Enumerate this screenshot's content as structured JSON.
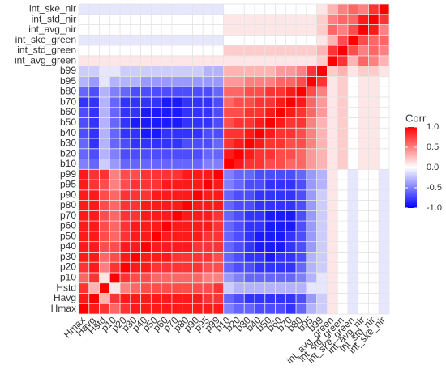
{
  "chart_data": {
    "type": "heatmap",
    "variables": [
      "Hmax",
      "Havg",
      "Hstd",
      "p10",
      "p20",
      "p30",
      "p40",
      "p50",
      "p60",
      "p70",
      "p80",
      "p90",
      "p95",
      "p99",
      "b10",
      "b20",
      "b30",
      "b40",
      "b50",
      "b60",
      "b70",
      "b80",
      "b95",
      "b99",
      "int_avg_green",
      "int_std_green",
      "int_ske_green",
      "int_avg_nir",
      "int_std_nir",
      "int_ske_nir"
    ],
    "values": [
      [
        1,
        0.9,
        0.8,
        0.6,
        0.8,
        0.9,
        0.9,
        0.9,
        0.9,
        0.9,
        0.9,
        0.9,
        0.9,
        0.9,
        -0.5,
        -0.6,
        -0.6,
        -0.7,
        -0.7,
        -0.7,
        -0.8,
        -0.6,
        -0.3,
        -0.2,
        0.1,
        0.0,
        -0.1,
        0.0,
        0.0,
        -0.1
      ],
      [
        0.9,
        1,
        0.3,
        0.8,
        0.9,
        0.9,
        0.9,
        0.9,
        0.9,
        0.9,
        0.9,
        0.9,
        0.8,
        0.8,
        -0.6,
        -0.7,
        -0.8,
        -0.8,
        -0.8,
        -0.8,
        -0.8,
        -0.7,
        -0.4,
        -0.2,
        0.1,
        0.0,
        -0.1,
        0.0,
        0.0,
        -0.1
      ],
      [
        0.8,
        0.3,
        1,
        0.1,
        0.5,
        0.6,
        0.7,
        0.7,
        0.7,
        0.7,
        0.7,
        0.7,
        0.7,
        0.8,
        -0.2,
        -0.3,
        -0.3,
        -0.3,
        -0.3,
        -0.3,
        -0.3,
        -0.3,
        -0.1,
        -0.1,
        0.1,
        0.0,
        -0.1,
        0.0,
        0.0,
        -0.1
      ],
      [
        0.6,
        0.8,
        0.1,
        1,
        0.8,
        0.7,
        0.7,
        0.6,
        0.6,
        0.6,
        0.6,
        0.6,
        0.5,
        0.5,
        -0.4,
        -0.5,
        -0.6,
        -0.6,
        -0.6,
        -0.6,
        -0.6,
        -0.5,
        -0.3,
        -0.1,
        0.1,
        0.0,
        -0.1,
        0.0,
        0.0,
        -0.1
      ],
      [
        0.8,
        0.9,
        0.5,
        0.8,
        1,
        0.9,
        0.9,
        0.8,
        0.8,
        0.8,
        0.8,
        0.8,
        0.7,
        0.7,
        -0.6,
        -0.7,
        -0.7,
        -0.8,
        -0.8,
        -0.8,
        -0.8,
        -0.6,
        -0.3,
        -0.2,
        0.1,
        0.0,
        -0.1,
        0.0,
        0.0,
        -0.1
      ],
      [
        0.9,
        0.9,
        0.6,
        0.7,
        0.9,
        1,
        0.9,
        0.9,
        0.9,
        0.8,
        0.8,
        0.8,
        0.8,
        0.7,
        -0.6,
        -0.7,
        -0.8,
        -0.8,
        -0.9,
        -0.8,
        -0.8,
        -0.7,
        -0.3,
        -0.2,
        0.1,
        0.0,
        -0.1,
        0.0,
        0.0,
        -0.1
      ],
      [
        0.9,
        0.9,
        0.7,
        0.7,
        0.9,
        0.9,
        1,
        0.9,
        0.9,
        0.9,
        0.9,
        0.8,
        0.8,
        0.8,
        -0.6,
        -0.7,
        -0.8,
        -0.9,
        -0.9,
        -0.9,
        -0.8,
        -0.7,
        -0.4,
        -0.2,
        0.1,
        0.0,
        -0.1,
        0.0,
        0.0,
        -0.1
      ],
      [
        0.9,
        0.9,
        0.7,
        0.6,
        0.8,
        0.9,
        0.9,
        1,
        0.9,
        0.9,
        0.9,
        0.9,
        0.8,
        0.8,
        -0.6,
        -0.7,
        -0.8,
        -0.9,
        -0.9,
        -0.9,
        -0.8,
        -0.7,
        -0.4,
        -0.2,
        0.1,
        0.0,
        -0.1,
        0.0,
        0.0,
        -0.1
      ],
      [
        0.9,
        0.9,
        0.7,
        0.6,
        0.8,
        0.9,
        0.9,
        0.9,
        1,
        0.9,
        0.9,
        0.9,
        0.9,
        0.8,
        -0.6,
        -0.7,
        -0.8,
        -0.8,
        -0.9,
        -0.9,
        -0.9,
        -0.7,
        -0.4,
        -0.2,
        0.1,
        0.0,
        -0.1,
        0.0,
        0.0,
        -0.1
      ],
      [
        0.9,
        0.9,
        0.7,
        0.6,
        0.8,
        0.8,
        0.9,
        0.9,
        0.9,
        1,
        0.9,
        0.9,
        0.9,
        0.8,
        -0.6,
        -0.7,
        -0.8,
        -0.8,
        -0.9,
        -0.9,
        -0.9,
        -0.7,
        -0.4,
        -0.2,
        0.1,
        0.0,
        -0.1,
        0.0,
        0.0,
        -0.1
      ],
      [
        0.9,
        0.9,
        0.7,
        0.6,
        0.8,
        0.8,
        0.9,
        0.9,
        0.9,
        0.9,
        1,
        0.9,
        0.9,
        0.9,
        -0.6,
        -0.7,
        -0.7,
        -0.8,
        -0.8,
        -0.8,
        -0.8,
        -0.7,
        -0.4,
        -0.2,
        0.1,
        0.0,
        -0.1,
        0.0,
        0.0,
        -0.1
      ],
      [
        0.9,
        0.9,
        0.7,
        0.6,
        0.8,
        0.8,
        0.8,
        0.9,
        0.9,
        0.9,
        0.9,
        1,
        0.9,
        0.9,
        -0.6,
        -0.7,
        -0.7,
        -0.8,
        -0.8,
        -0.8,
        -0.8,
        -0.7,
        -0.4,
        -0.2,
        0.1,
        0.0,
        -0.1,
        0.0,
        0.0,
        -0.1
      ],
      [
        0.9,
        0.8,
        0.7,
        0.5,
        0.7,
        0.8,
        0.8,
        0.8,
        0.9,
        0.9,
        0.9,
        0.9,
        1,
        0.9,
        -0.5,
        -0.6,
        -0.7,
        -0.7,
        -0.8,
        -0.8,
        -0.8,
        -0.7,
        -0.4,
        -0.3,
        0.1,
        0.0,
        -0.1,
        0.0,
        0.0,
        -0.1
      ],
      [
        0.9,
        0.8,
        0.8,
        0.5,
        0.7,
        0.7,
        0.8,
        0.8,
        0.8,
        0.8,
        0.9,
        0.9,
        0.9,
        1,
        -0.5,
        -0.6,
        -0.6,
        -0.7,
        -0.7,
        -0.7,
        -0.7,
        -0.6,
        -0.4,
        -0.3,
        0.1,
        0.0,
        -0.1,
        0.0,
        0.0,
        -0.1
      ],
      [
        -0.5,
        -0.6,
        -0.2,
        -0.4,
        -0.6,
        -0.6,
        -0.6,
        -0.6,
        -0.6,
        -0.6,
        -0.6,
        -0.6,
        -0.5,
        -0.5,
        1,
        0.9,
        0.8,
        0.8,
        0.7,
        0.7,
        0.6,
        0.6,
        0.4,
        0.3,
        0.1,
        0.2,
        0.0,
        0.1,
        0.1,
        0.0
      ],
      [
        -0.6,
        -0.7,
        -0.3,
        -0.5,
        -0.7,
        -0.7,
        -0.7,
        -0.7,
        -0.7,
        -0.7,
        -0.7,
        -0.7,
        -0.6,
        -0.6,
        0.9,
        1,
        0.9,
        0.8,
        0.8,
        0.7,
        0.7,
        0.6,
        0.4,
        0.3,
        0.1,
        0.2,
        0.0,
        0.1,
        0.1,
        0.0
      ],
      [
        -0.6,
        -0.8,
        -0.3,
        -0.6,
        -0.7,
        -0.8,
        -0.8,
        -0.8,
        -0.8,
        -0.8,
        -0.7,
        -0.7,
        -0.7,
        -0.6,
        0.8,
        0.9,
        1,
        0.9,
        0.8,
        0.8,
        0.7,
        0.7,
        0.5,
        0.3,
        0.1,
        0.2,
        0.0,
        0.1,
        0.1,
        0.0
      ],
      [
        -0.7,
        -0.8,
        -0.3,
        -0.6,
        -0.8,
        -0.8,
        -0.9,
        -0.9,
        -0.8,
        -0.8,
        -0.8,
        -0.8,
        -0.7,
        -0.7,
        0.8,
        0.8,
        0.9,
        1,
        0.9,
        0.8,
        0.8,
        0.7,
        0.5,
        0.3,
        0.1,
        0.2,
        0.0,
        0.1,
        0.1,
        0.0
      ],
      [
        -0.7,
        -0.8,
        -0.3,
        -0.6,
        -0.8,
        -0.9,
        -0.9,
        -0.9,
        -0.9,
        -0.9,
        -0.8,
        -0.8,
        -0.8,
        -0.7,
        0.7,
        0.8,
        0.8,
        0.9,
        1,
        0.9,
        0.8,
        0.8,
        0.5,
        0.3,
        0.1,
        0.2,
        0.0,
        0.1,
        0.1,
        0.0
      ],
      [
        -0.7,
        -0.8,
        -0.3,
        -0.6,
        -0.8,
        -0.8,
        -0.9,
        -0.9,
        -0.9,
        -0.9,
        -0.8,
        -0.8,
        -0.8,
        -0.7,
        0.7,
        0.7,
        0.8,
        0.8,
        0.9,
        1,
        0.9,
        0.8,
        0.6,
        0.4,
        0.1,
        0.2,
        0.0,
        0.1,
        0.1,
        0.0
      ],
      [
        -0.8,
        -0.8,
        -0.3,
        -0.6,
        -0.8,
        -0.8,
        -0.8,
        -0.8,
        -0.9,
        -0.9,
        -0.8,
        -0.8,
        -0.8,
        -0.7,
        0.6,
        0.7,
        0.7,
        0.8,
        0.8,
        0.9,
        1,
        0.9,
        0.6,
        0.4,
        0.1,
        0.2,
        0.0,
        0.1,
        0.1,
        0.0
      ],
      [
        -0.6,
        -0.7,
        -0.3,
        -0.5,
        -0.6,
        -0.7,
        -0.7,
        -0.7,
        -0.7,
        -0.7,
        -0.7,
        -0.7,
        -0.7,
        -0.6,
        0.6,
        0.6,
        0.7,
        0.7,
        0.8,
        0.8,
        0.9,
        1,
        0.7,
        0.5,
        0.1,
        0.2,
        0.0,
        0.1,
        0.1,
        0.0
      ],
      [
        -0.3,
        -0.4,
        -0.1,
        -0.3,
        -0.3,
        -0.3,
        -0.4,
        -0.4,
        -0.4,
        -0.4,
        -0.4,
        -0.4,
        -0.4,
        -0.4,
        0.4,
        0.4,
        0.5,
        0.5,
        0.5,
        0.6,
        0.6,
        0.7,
        1,
        0.8,
        0.1,
        0.2,
        0.0,
        0.1,
        0.1,
        0.0
      ],
      [
        -0.2,
        -0.2,
        -0.1,
        -0.1,
        -0.2,
        -0.2,
        -0.2,
        -0.2,
        -0.2,
        -0.2,
        -0.2,
        -0.2,
        -0.3,
        -0.3,
        0.3,
        0.3,
        0.3,
        0.3,
        0.3,
        0.4,
        0.4,
        0.5,
        0.8,
        1,
        0.2,
        0.3,
        0.1,
        0.2,
        0.2,
        0.1
      ],
      [
        0.1,
        0.1,
        0.1,
        0.1,
        0.1,
        0.1,
        0.1,
        0.1,
        0.1,
        0.1,
        0.1,
        0.1,
        0.1,
        0.1,
        0.1,
        0.1,
        0.1,
        0.1,
        0.1,
        0.1,
        0.1,
        0.1,
        0.1,
        0.2,
        1,
        0.8,
        0.3,
        0.6,
        0.5,
        0.3
      ],
      [
        0.0,
        0.0,
        0.0,
        0.0,
        0.0,
        0.0,
        0.0,
        0.0,
        0.0,
        0.0,
        0.0,
        0.0,
        0.0,
        0.0,
        0.2,
        0.2,
        0.2,
        0.2,
        0.2,
        0.2,
        0.2,
        0.2,
        0.2,
        0.3,
        0.8,
        1,
        0.7,
        0.5,
        0.6,
        0.5
      ],
      [
        -0.1,
        -0.1,
        -0.1,
        -0.1,
        -0.1,
        -0.1,
        -0.1,
        -0.1,
        -0.1,
        -0.1,
        -0.1,
        -0.1,
        -0.1,
        -0.1,
        0.0,
        0.0,
        0.0,
        0.0,
        0.0,
        0.0,
        0.0,
        0.0,
        0.0,
        0.1,
        0.3,
        0.7,
        1,
        0.7,
        0.6,
        0.6
      ],
      [
        0.0,
        0.0,
        0.0,
        0.0,
        0.0,
        0.0,
        0.0,
        0.0,
        0.0,
        0.0,
        0.0,
        0.0,
        0.0,
        0.0,
        0.1,
        0.1,
        0.1,
        0.1,
        0.1,
        0.1,
        0.1,
        0.1,
        0.1,
        0.2,
        0.6,
        0.5,
        0.7,
        1,
        0.9,
        0.5
      ],
      [
        0.0,
        0.0,
        0.0,
        0.0,
        0.0,
        0.0,
        0.0,
        0.0,
        0.0,
        0.0,
        0.0,
        0.0,
        0.0,
        0.0,
        0.1,
        0.1,
        0.1,
        0.1,
        0.1,
        0.1,
        0.1,
        0.1,
        0.1,
        0.2,
        0.5,
        0.6,
        0.6,
        0.9,
        1,
        0.8
      ],
      [
        -0.1,
        -0.1,
        -0.1,
        -0.1,
        -0.1,
        -0.1,
        -0.1,
        -0.1,
        -0.1,
        -0.1,
        -0.1,
        -0.1,
        -0.1,
        -0.1,
        0.0,
        0.0,
        0.0,
        0.0,
        0.0,
        0.0,
        0.0,
        0.0,
        0.0,
        0.1,
        0.3,
        0.5,
        0.6,
        0.5,
        0.8,
        1
      ]
    ],
    "legend_title": "Corr",
    "zlim": [
      -1,
      1
    ],
    "zticks": [
      {
        "value": 1,
        "label": "1.0"
      },
      {
        "value": 0.5,
        "label": "0.5"
      },
      {
        "value": 0,
        "label": "0.0"
      },
      {
        "value": -0.5,
        "label": "-0.5"
      },
      {
        "value": -1,
        "label": "-1.0"
      }
    ],
    "colors": {
      "low": "#0000ff",
      "mid": "#ffffff",
      "high": "#ff0000"
    }
  }
}
